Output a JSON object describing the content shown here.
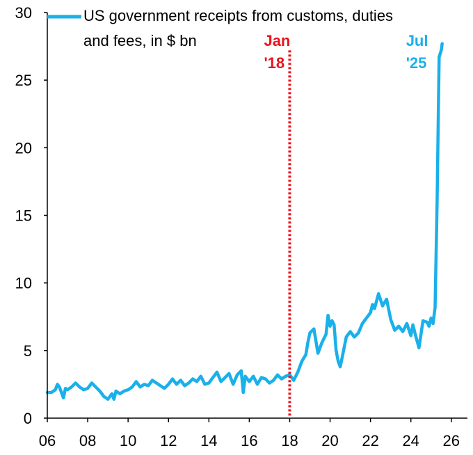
{
  "chart_data": {
    "type": "line",
    "title": "",
    "xlabel": "",
    "ylabel": "",
    "xlim": [
      2006,
      2026.8
    ],
    "ylim": [
      0,
      30
    ],
    "x_ticks": [
      {
        "value": 2006,
        "label": "06"
      },
      {
        "value": 2008,
        "label": "08"
      },
      {
        "value": 2010,
        "label": "10"
      },
      {
        "value": 2012,
        "label": "12"
      },
      {
        "value": 2014,
        "label": "14"
      },
      {
        "value": 2016,
        "label": "16"
      },
      {
        "value": 2018,
        "label": "18"
      },
      {
        "value": 2020,
        "label": "20"
      },
      {
        "value": 2022,
        "label": "22"
      },
      {
        "value": 2024,
        "label": "24"
      },
      {
        "value": 2026,
        "label": "26"
      }
    ],
    "y_ticks": [
      {
        "value": 0,
        "label": "0"
      },
      {
        "value": 5,
        "label": "5"
      },
      {
        "value": 10,
        "label": "10"
      },
      {
        "value": 15,
        "label": "15"
      },
      {
        "value": 20,
        "label": "20"
      },
      {
        "value": 25,
        "label": "25"
      },
      {
        "value": 30,
        "label": "30"
      }
    ],
    "legend": {
      "position": "top-left",
      "lines": [
        "US government receipts from customs, duties",
        "and fees, in $ bn"
      ]
    },
    "series": [
      {
        "name": "US government receipts from customs, duties and fees, in $ bn",
        "color": "#1ab0ea",
        "x": [
          2006.0,
          2006.2,
          2006.4,
          2006.5,
          2006.6,
          2006.8,
          2006.9,
          2007.0,
          2007.2,
          2007.4,
          2007.6,
          2007.8,
          2008.0,
          2008.2,
          2008.4,
          2008.6,
          2008.8,
          2009.0,
          2009.2,
          2009.3,
          2009.4,
          2009.6,
          2009.8,
          2010.0,
          2010.2,
          2010.4,
          2010.6,
          2010.8,
          2011.0,
          2011.2,
          2011.4,
          2011.6,
          2011.8,
          2012.0,
          2012.2,
          2012.4,
          2012.6,
          2012.8,
          2013.0,
          2013.2,
          2013.4,
          2013.6,
          2013.8,
          2014.0,
          2014.2,
          2014.4,
          2014.6,
          2014.8,
          2015.0,
          2015.2,
          2015.4,
          2015.6,
          2015.7,
          2015.8,
          2016.0,
          2016.2,
          2016.4,
          2016.6,
          2016.8,
          2017.0,
          2017.2,
          2017.4,
          2017.6,
          2017.8,
          2018.0,
          2018.2,
          2018.4,
          2018.6,
          2018.8,
          2018.9,
          2019.0,
          2019.2,
          2019.4,
          2019.6,
          2019.8,
          2019.9,
          2020.0,
          2020.1,
          2020.2,
          2020.3,
          2020.4,
          2020.5,
          2020.6,
          2020.8,
          2021.0,
          2021.2,
          2021.4,
          2021.6,
          2021.8,
          2022.0,
          2022.1,
          2022.2,
          2022.4,
          2022.6,
          2022.8,
          2023.0,
          2023.2,
          2023.4,
          2023.6,
          2023.8,
          2024.0,
          2024.1,
          2024.2,
          2024.4,
          2024.6,
          2024.8,
          2024.9,
          2025.0,
          2025.1,
          2025.2,
          2025.3,
          2025.4,
          2025.5,
          2025.55
        ],
        "values": [
          1.9,
          1.9,
          2.1,
          2.5,
          2.3,
          1.5,
          2.2,
          2.1,
          2.3,
          2.6,
          2.3,
          2.1,
          2.2,
          2.6,
          2.3,
          2.0,
          1.6,
          1.4,
          1.8,
          1.4,
          2.0,
          1.8,
          2.0,
          2.1,
          2.3,
          2.7,
          2.3,
          2.5,
          2.4,
          2.8,
          2.6,
          2.4,
          2.2,
          2.5,
          2.9,
          2.5,
          2.8,
          2.4,
          2.6,
          2.9,
          2.7,
          3.1,
          2.5,
          2.6,
          3.0,
          3.4,
          2.7,
          3.0,
          3.3,
          2.5,
          3.2,
          3.5,
          1.9,
          3.1,
          2.7,
          3.1,
          2.5,
          3.0,
          2.9,
          2.6,
          2.8,
          3.2,
          2.9,
          3.1,
          3.2,
          2.8,
          3.4,
          4.2,
          4.7,
          5.6,
          6.3,
          6.6,
          4.8,
          5.6,
          6.2,
          7.6,
          6.8,
          7.2,
          6.9,
          5.0,
          4.2,
          3.8,
          4.5,
          6.0,
          6.4,
          6.0,
          6.3,
          7.0,
          7.4,
          7.8,
          8.4,
          8.1,
          9.2,
          8.3,
          8.8,
          7.3,
          6.5,
          6.8,
          6.4,
          7.0,
          6.1,
          6.9,
          6.3,
          5.2,
          7.2,
          7.1,
          6.8,
          7.4,
          7.0,
          8.2,
          16.0,
          26.7,
          27.2,
          27.7
        ]
      }
    ],
    "annotations": [
      {
        "x": 2018,
        "label_lines": [
          "Jan",
          "'18"
        ],
        "color": "#e8141d",
        "style": "dotted-vertical-line"
      },
      {
        "x": 2025.55,
        "label_lines": [
          "Jul",
          "'25"
        ],
        "color": "#1ab0ea",
        "style": "text"
      }
    ]
  }
}
